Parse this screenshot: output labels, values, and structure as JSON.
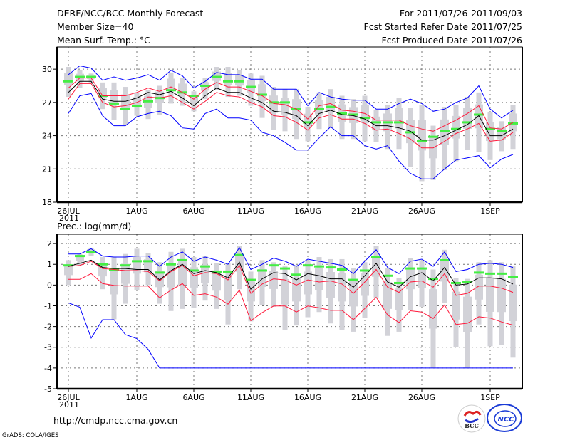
{
  "header": {
    "title": "DERF/NCC/BCC Monthly Forecast",
    "member_size": "Member Size=40",
    "variable": "Mean Surf. Temp.: °C",
    "period": "For 2011/07/26-2011/09/03",
    "refer_date": "Fcst Started Refer Date 2011/07/25",
    "produced_date": "Fcst Produced Date 2011/07/26"
  },
  "footer": {
    "url": "http://cmdp.ncc.cma.gov.cn",
    "credit": "GrADS: COLA/IGES",
    "logo_bcc": "BCC",
    "logo_ncc": "NCC"
  },
  "colors": {
    "max_min": "#0000ff",
    "spread": "#ff1a3c",
    "mean": "#000000",
    "marker": "#44ee44",
    "range": "#d2d2d8",
    "grid": "#777777"
  },
  "chart_data": [
    {
      "type": "line",
      "title": "Mean Surf. Temp.: °C",
      "ylabel": "°C",
      "ylim": [
        18,
        32
      ],
      "yticks": [
        18,
        21,
        24,
        27,
        30
      ],
      "ytick_labels": [
        "18",
        "21",
        "24",
        "27",
        "30"
      ],
      "xtick_days": [
        0,
        6,
        11,
        16,
        21,
        26,
        31,
        37
      ],
      "xtick_labels": [
        "26JUL",
        "1AUG",
        "6AUG",
        "11AUG",
        "16AUG",
        "21AUG",
        "26AUG",
        "1SEP"
      ],
      "xyear_label": "2011",
      "grid": true,
      "days": 40,
      "series": {
        "max": [
          29.5,
          30.3,
          30.1,
          29.0,
          29.3,
          29.0,
          29.2,
          29.5,
          29.0,
          29.9,
          29.4,
          28.3,
          28.9,
          29.7,
          29.5,
          29.5,
          29.1,
          29.1,
          28.2,
          28.2,
          28.2,
          26.7,
          27.9,
          27.5,
          27.3,
          27.2,
          27.2,
          26.4,
          26.4,
          26.9,
          27.3,
          26.9,
          26.2,
          26.4,
          27.0,
          27.4,
          28.5,
          26.4,
          25.6,
          26.3
        ],
        "min": [
          26.0,
          27.6,
          27.8,
          25.8,
          24.9,
          24.9,
          25.7,
          26.0,
          26.2,
          25.8,
          24.7,
          24.6,
          26.0,
          26.4,
          25.6,
          25.6,
          25.4,
          24.3,
          24.0,
          23.4,
          22.7,
          22.7,
          23.8,
          24.8,
          24.0,
          24.0,
          23.1,
          22.8,
          23.1,
          21.7,
          20.6,
          20.1,
          20.1,
          21.0,
          21.8,
          22.0,
          22.2,
          21.1,
          21.9,
          22.3
        ],
        "mean": [
          27.9,
          28.9,
          28.9,
          27.3,
          27.1,
          27.1,
          27.4,
          27.9,
          27.7,
          28.0,
          27.4,
          26.7,
          27.6,
          28.3,
          27.9,
          27.9,
          27.4,
          27.0,
          26.2,
          26.1,
          25.8,
          24.9,
          26.0,
          26.3,
          25.9,
          25.8,
          25.5,
          24.9,
          24.9,
          24.7,
          24.4,
          23.6,
          23.6,
          24.0,
          24.5,
          25.0,
          25.8,
          24.0,
          24.0,
          24.6
        ],
        "upper": [
          28.3,
          29.2,
          29.2,
          27.6,
          27.6,
          27.6,
          27.9,
          28.3,
          28.0,
          28.4,
          27.9,
          27.3,
          28.2,
          28.8,
          28.4,
          28.4,
          28.0,
          27.6,
          26.9,
          26.8,
          26.4,
          25.5,
          26.7,
          26.9,
          26.3,
          26.2,
          26.0,
          25.4,
          25.4,
          25.4,
          24.9,
          24.6,
          24.4,
          24.9,
          25.4,
          26.0,
          26.7,
          24.7,
          24.6,
          25.2
        ],
        "lower": [
          27.3,
          28.7,
          28.7,
          27.0,
          26.6,
          26.7,
          27.0,
          27.5,
          27.4,
          27.6,
          27.0,
          26.4,
          27.1,
          27.9,
          27.6,
          27.5,
          27.0,
          26.6,
          25.8,
          25.7,
          25.2,
          24.5,
          25.6,
          25.9,
          25.5,
          25.5,
          25.1,
          24.5,
          24.6,
          24.2,
          23.7,
          22.9,
          22.9,
          23.5,
          24.2,
          24.6,
          25.1,
          23.5,
          23.6,
          24.3
        ],
        "marker": [
          28.9,
          29.3,
          29.3,
          27.6,
          26.9,
          26.4,
          26.7,
          27.1,
          27.4,
          28.1,
          27.9,
          27.6,
          28.5,
          29.3,
          28.9,
          28.9,
          28.4,
          27.7,
          27.0,
          27.0,
          26.4,
          25.2,
          26.4,
          26.6,
          26.0,
          25.9,
          25.6,
          25.2,
          25.2,
          25.2,
          24.3,
          23.5,
          23.9,
          24.4,
          24.6,
          25.2,
          25.9,
          24.6,
          24.4,
          25.1
        ],
        "range_hi": [
          30.2,
          29.9,
          29.6,
          28.8,
          28.8,
          28.4,
          27.9,
          28.1,
          28.5,
          29.7,
          29.2,
          28.0,
          29.2,
          30.2,
          30.2,
          29.9,
          29.6,
          29.4,
          28.4,
          28.2,
          28.2,
          26.6,
          27.9,
          28.2,
          27.6,
          27.3,
          27.6,
          26.3,
          26.8,
          27.4,
          26.5,
          26.8,
          24.9,
          26.6,
          26.8,
          27.5,
          27.9,
          26.1,
          25.3,
          26.8
        ],
        "range_lo": [
          27.5,
          28.3,
          28.8,
          26.4,
          25.4,
          25.0,
          25.8,
          25.5,
          25.9,
          26.9,
          26.7,
          26.2,
          27.3,
          28.1,
          27.5,
          27.6,
          26.7,
          25.6,
          24.5,
          24.4,
          23.7,
          23.5,
          24.6,
          24.7,
          23.7,
          23.7,
          23.5,
          23.4,
          22.8,
          22.8,
          21.2,
          19.9,
          20.0,
          20.9,
          21.7,
          22.7,
          22.5,
          21.8,
          22.6,
          22.8
        ]
      }
    },
    {
      "type": "line",
      "title": "Prec.: log(mm/d)",
      "ylabel": "log(mm/d)",
      "ylim": [
        -5,
        2.45
      ],
      "yticks": [
        -5,
        -4,
        -3,
        -2,
        -1,
        0,
        1,
        2
      ],
      "ytick_labels": [
        "-5",
        "-4",
        "-3",
        "-2",
        "-1",
        "0",
        "1",
        "2"
      ],
      "xtick_days": [
        0,
        6,
        11,
        16,
        21,
        26,
        31,
        37
      ],
      "xtick_labels": [
        "26JUL",
        "1AUG",
        "6AUG",
        "11AUG",
        "16AUG",
        "21AUG",
        "26AUG",
        "1SEP"
      ],
      "xyear_label": "2011",
      "grid": true,
      "days": 40,
      "series": {
        "max": [
          1.5,
          1.5,
          1.75,
          1.4,
          1.35,
          1.35,
          1.4,
          1.4,
          0.9,
          1.35,
          1.6,
          1.15,
          1.35,
          1.2,
          1.0,
          1.8,
          0.75,
          1.0,
          1.3,
          1.15,
          0.9,
          1.25,
          1.15,
          1.05,
          0.95,
          0.55,
          1.15,
          1.7,
          0.85,
          0.55,
          1.15,
          1.25,
          0.9,
          1.6,
          0.65,
          0.75,
          1.0,
          1.05,
          1.0,
          0.85
        ],
        "min": [
          -0.86,
          -1.07,
          -2.56,
          -1.67,
          -1.67,
          -2.39,
          -2.58,
          -3.1,
          -4,
          -4,
          -4,
          -4,
          -4,
          -4,
          -4,
          -4,
          -4,
          -4,
          -4,
          -4,
          -4,
          -4,
          -4,
          -4,
          -4,
          -4,
          -4,
          -4,
          -4,
          -4,
          -4,
          -4,
          -4,
          -4,
          -4,
          -4,
          -4,
          -4,
          -4,
          -4
        ],
        "mean": [
          0.9,
          1.05,
          1.2,
          0.85,
          0.8,
          0.8,
          0.75,
          0.75,
          0.25,
          0.7,
          1.0,
          0.55,
          0.7,
          0.6,
          0.35,
          1.1,
          -0.2,
          0.3,
          0.6,
          0.55,
          0.25,
          0.55,
          0.45,
          0.3,
          0.3,
          -0.1,
          0.45,
          1.05,
          0.15,
          -0.1,
          0.4,
          0.6,
          0.2,
          0.85,
          0.0,
          0.05,
          0.35,
          0.35,
          0.3,
          0.05
        ],
        "upper": [
          0.9,
          0.95,
          1.15,
          0.8,
          0.75,
          0.7,
          0.7,
          0.65,
          0.2,
          0.65,
          0.95,
          0.45,
          0.6,
          0.55,
          0.25,
          0.95,
          -0.4,
          0.05,
          0.3,
          0.25,
          0.0,
          0.25,
          0.15,
          0.2,
          0.05,
          -0.4,
          0.15,
          0.75,
          -0.1,
          -0.35,
          0.15,
          0.2,
          -0.1,
          0.55,
          -0.5,
          -0.4,
          -0.05,
          -0.05,
          -0.15,
          -0.35
        ],
        "lower": [
          0.28,
          0.28,
          0.55,
          0.07,
          -0.02,
          -0.05,
          -0.05,
          -0.05,
          -0.62,
          -0.24,
          0.07,
          -0.5,
          -0.42,
          -0.58,
          -0.92,
          -0.24,
          -1.72,
          -1.33,
          -1.01,
          -1.01,
          -1.3,
          -1.01,
          -1.1,
          -1.22,
          -1.22,
          -1.67,
          -1.13,
          -0.59,
          -1.44,
          -1.81,
          -1.24,
          -1.3,
          -1.61,
          -0.96,
          -1.9,
          -1.84,
          -1.53,
          -1.59,
          -1.78,
          -1.93
        ],
        "marker": [
          0.95,
          1.4,
          1.6,
          1.0,
          0.75,
          0.95,
          1.15,
          1.15,
          0.6,
          1.0,
          1.2,
          0.7,
          0.9,
          0.65,
          0.65,
          1.45,
          0.25,
          0.7,
          0.95,
          0.8,
          0.5,
          0.95,
          0.9,
          0.85,
          0.75,
          0.25,
          0.7,
          1.35,
          0.45,
          0.1,
          0.8,
          0.8,
          0.3,
          1.2,
          0.1,
          0.15,
          0.6,
          0.55,
          0.55,
          0.4
        ],
        "range_hi": [
          1.2,
          1.5,
          1.8,
          1.35,
          1.35,
          1.5,
          1.75,
          1.55,
          1.1,
          1.6,
          1.75,
          1.35,
          1.4,
          1.05,
          1.05,
          1.9,
          0.65,
          1.2,
          1.1,
          0.9,
          0.95,
          1.2,
          1.35,
          1.25,
          1.25,
          0.8,
          1.1,
          1.9,
          0.8,
          0.35,
          1.3,
          1.2,
          0.75,
          1.7,
          0.35,
          0.3,
          1.1,
          1.2,
          1.1,
          0.9
        ],
        "range_lo": [
          0.0,
          0.95,
          1.4,
          -0.2,
          -1.65,
          -0.9,
          -0.25,
          0.0,
          -0.9,
          -1.25,
          -1.15,
          -1.1,
          -0.75,
          -1.15,
          -1.9,
          -0.2,
          -1.75,
          -0.95,
          -1.05,
          -2.15,
          -1.95,
          -1.55,
          -1.3,
          -1.85,
          -2.15,
          -2.25,
          -1.6,
          -0.6,
          -2.45,
          -2.25,
          -1.2,
          -1.05,
          -4.0,
          -0.85,
          -3.0,
          -4.0,
          -1.9,
          -2.95,
          -2.9,
          -3.5
        ]
      }
    }
  ]
}
